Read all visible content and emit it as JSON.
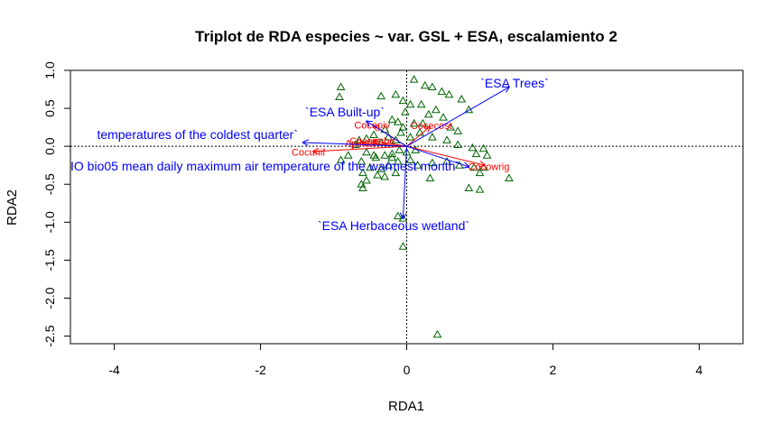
{
  "chart_data": {
    "type": "scatter",
    "title": "Triplot de RDA especies ~ var. GSL + ESA, escalamiento 2",
    "xlabel": "RDA1",
    "ylabel": "RDA2",
    "xlim": [
      -4.6,
      4.6
    ],
    "ylim": [
      -2.6,
      1.0
    ],
    "x_ticks": [
      "-4",
      "-2",
      "0",
      "2",
      "4"
    ],
    "x_tick_values": [
      -4,
      -2,
      0,
      2,
      4
    ],
    "y_ticks": [
      "-2.5",
      "-2.0",
      "-1.5",
      "-1.0",
      "-0.5",
      "0.0",
      "0.5",
      "1.0"
    ],
    "y_tick_values": [
      -2.5,
      -2.0,
      -1.5,
      -1.0,
      -0.5,
      0.0,
      0.5,
      1.0
    ],
    "reference_lines": {
      "x": 0,
      "y": 0,
      "style": "dotted"
    },
    "site_marker": "triangle",
    "colors": {
      "sites": "#006400",
      "env_arrows": "#0000ff",
      "species": "#ff0000",
      "axes": "#000000"
    },
    "sites": [
      [
        0.1,
        0.88
      ],
      [
        0.25,
        0.8
      ],
      [
        0.35,
        0.78
      ],
      [
        0.48,
        0.72
      ],
      [
        0.58,
        0.68
      ],
      [
        -0.9,
        0.78
      ],
      [
        -0.92,
        0.65
      ],
      [
        -0.35,
        0.66
      ],
      [
        -0.15,
        0.68
      ],
      [
        -0.05,
        0.6
      ],
      [
        0.05,
        0.55
      ],
      [
        0.2,
        0.55
      ],
      [
        -0.02,
        0.45
      ],
      [
        0.4,
        0.48
      ],
      [
        0.75,
        0.62
      ],
      [
        0.85,
        0.48
      ],
      [
        0.3,
        0.42
      ],
      [
        0.1,
        0.3
      ],
      [
        0.22,
        0.3
      ],
      [
        0.5,
        0.38
      ],
      [
        0.6,
        0.25
      ],
      [
        0.7,
        0.2
      ],
      [
        -0.2,
        0.35
      ],
      [
        -0.12,
        0.32
      ],
      [
        -0.05,
        0.25
      ],
      [
        -0.3,
        0.22
      ],
      [
        -0.45,
        0.15
      ],
      [
        -0.55,
        0.1
      ],
      [
        -0.65,
        0.08
      ],
      [
        -0.7,
        0.02
      ],
      [
        -0.25,
        0.12
      ],
      [
        -0.15,
        0.08
      ],
      [
        0.05,
        0.12
      ],
      [
        0.18,
        0.18
      ],
      [
        0.35,
        0.12
      ],
      [
        0.55,
        0.08
      ],
      [
        0.7,
        0.02
      ],
      [
        0.9,
        -0.02
      ],
      [
        1.05,
        -0.03
      ],
      [
        0.95,
        -0.1
      ],
      [
        1.1,
        -0.12
      ],
      [
        -0.1,
        -0.05
      ],
      [
        -0.2,
        -0.1
      ],
      [
        -0.3,
        -0.12
      ],
      [
        -0.42,
        -0.15
      ],
      [
        -0.55,
        -0.08
      ],
      [
        -0.62,
        -0.2
      ],
      [
        -0.8,
        -0.12
      ],
      [
        -0.9,
        -0.18
      ],
      [
        -0.12,
        -0.2
      ],
      [
        0.05,
        -0.18
      ],
      [
        0.15,
        -0.25
      ],
      [
        -0.25,
        -0.25
      ],
      [
        -0.35,
        -0.3
      ],
      [
        -0.5,
        -0.28
      ],
      [
        -0.6,
        -0.35
      ],
      [
        -0.4,
        -0.38
      ],
      [
        -0.3,
        -0.4
      ],
      [
        -0.55,
        -0.45
      ],
      [
        -0.62,
        -0.5
      ],
      [
        -0.6,
        -0.55
      ],
      [
        -0.15,
        -0.35
      ],
      [
        0.32,
        -0.42
      ],
      [
        0.35,
        -0.22
      ],
      [
        0.55,
        -0.2
      ],
      [
        0.72,
        -0.25
      ],
      [
        0.92,
        -0.28
      ],
      [
        1.0,
        -0.35
      ],
      [
        1.05,
        -0.28
      ],
      [
        1.4,
        -0.42
      ],
      [
        0.85,
        -0.55
      ],
      [
        1.0,
        -0.57
      ],
      [
        -0.12,
        -0.92
      ],
      [
        -0.05,
        -0.95
      ],
      [
        -0.05,
        -1.32
      ],
      [
        0.42,
        -2.48
      ],
      [
        -0.45,
        -0.12
      ],
      [
        -0.2,
        -0.15
      ],
      [
        0.0,
        -0.08
      ],
      [
        -0.08,
        0.18
      ],
      [
        0.12,
        -0.05
      ],
      [
        -0.35,
        0.05
      ]
    ],
    "env_arrows": [
      {
        "label": "`ESA Trees`",
        "x": 1.4,
        "y": 0.78
      },
      {
        "label": "`ESA Built-up`",
        "x": -0.55,
        "y": 0.33
      },
      {
        "label": "temperatures of the coldest quarter`",
        "x": -1.42,
        "y": 0.05
      },
      {
        "label": "IO bio05 mean daily maximum air temperature of the warmest month`",
        "x": 0.85,
        "y": -0.27
      },
      {
        "label": "`ESA Herbaceous wetland`",
        "x": -0.05,
        "y": -0.95
      }
    ],
    "species": [
      {
        "label": "Cocopiv",
        "x": -0.45,
        "y": 0.27
      },
      {
        "label": "Cocecost",
        "x": 0.32,
        "y": 0.26
      },
      {
        "label": "Cocopube",
        "x": -0.45,
        "y": 0.07
      },
      {
        "label": "Apilucli",
        "x": -0.6,
        "y": 0.04
      },
      {
        "label": "Cocunif",
        "x": -1.28,
        "y": -0.07
      },
      {
        "label": "Cocowrig",
        "x": 1.07,
        "y": -0.25
      }
    ]
  }
}
